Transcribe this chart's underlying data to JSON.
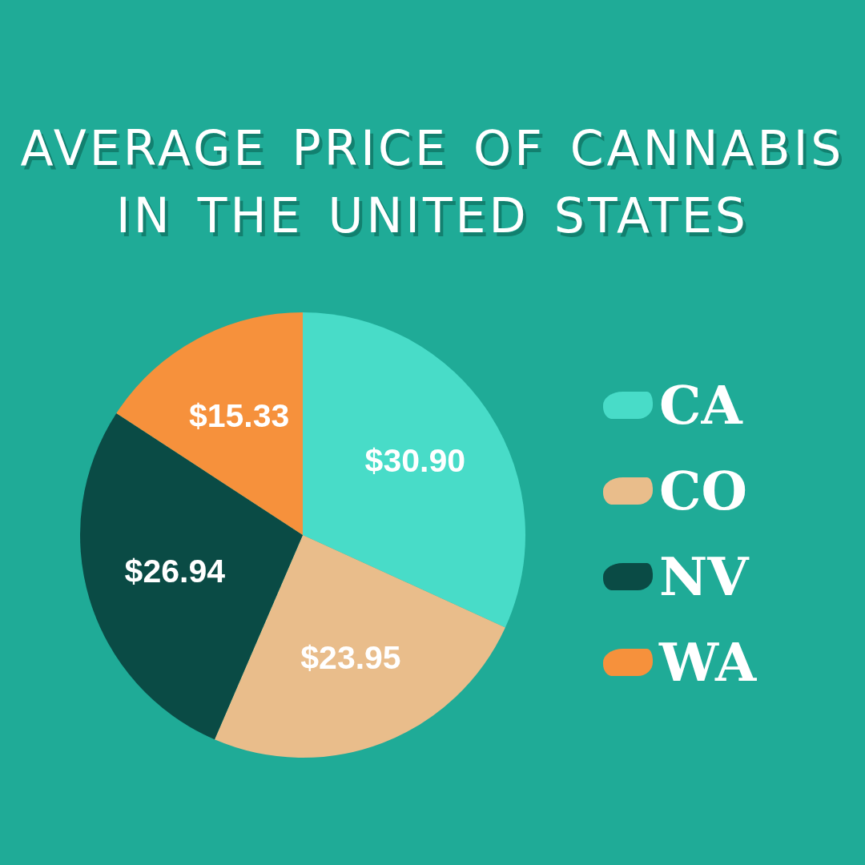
{
  "chart_data": {
    "type": "pie",
    "title": "AVERAGE PRICE OF CANNABIS IN THE UNITED STATES",
    "categories": [
      "CA",
      "CO",
      "NV",
      "WA"
    ],
    "values": [
      30.9,
      23.95,
      26.94,
      15.33
    ],
    "colors": [
      "#48dcc8",
      "#e9bd8b",
      "#0a4b45",
      "#f6913c"
    ],
    "value_labels": [
      "$30.90",
      "$23.95",
      "$26.94",
      "$15.33"
    ],
    "legend": "right"
  }
}
